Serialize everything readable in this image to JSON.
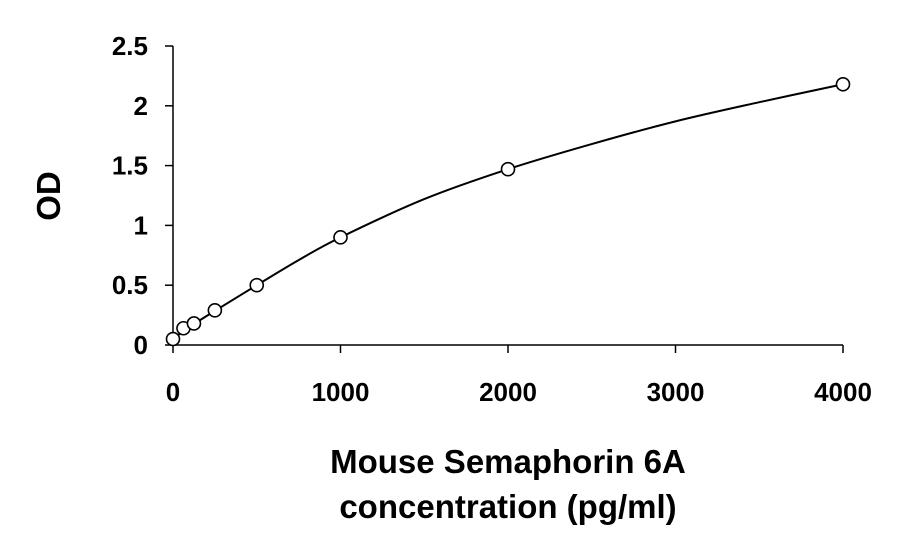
{
  "chart_data": {
    "type": "scatter",
    "xlabel_lines": [
      "Mouse Semaphorin 6A",
      "concentration (pg/ml)"
    ],
    "ylabel": "OD",
    "xlim": [
      0,
      4000
    ],
    "ylim": [
      0,
      2.5
    ],
    "xticks": [
      0,
      1000,
      2000,
      3000,
      4000
    ],
    "xtick_labels": [
      "0",
      "1000",
      "2000",
      "3000",
      "4000"
    ],
    "yticks": [
      0,
      0.5,
      1,
      1.5,
      2,
      2.5
    ],
    "ytick_labels": [
      "0",
      "0.5",
      "1",
      "1.5",
      "2",
      "2.5"
    ],
    "grid": false,
    "legend": "none",
    "series": [
      {
        "marker": "open-circle",
        "x": [
          0,
          62.5,
          125,
          250,
          500,
          1000,
          2000,
          4000
        ],
        "y": [
          0.05,
          0.14,
          0.18,
          0.29,
          0.5,
          0.9,
          1.47,
          2.18
        ]
      }
    ],
    "fit_curve": {
      "type": "smooth",
      "x": [
        0,
        62.5,
        125,
        250,
        500,
        750,
        1000,
        1500,
        2000,
        2500,
        3000,
        3500,
        4000
      ],
      "y": [
        0.05,
        0.115,
        0.175,
        0.285,
        0.5,
        0.71,
        0.9,
        1.22,
        1.47,
        1.68,
        1.87,
        2.03,
        2.18
      ]
    },
    "colors": {
      "marks": "#000000",
      "background": "#ffffff"
    }
  }
}
